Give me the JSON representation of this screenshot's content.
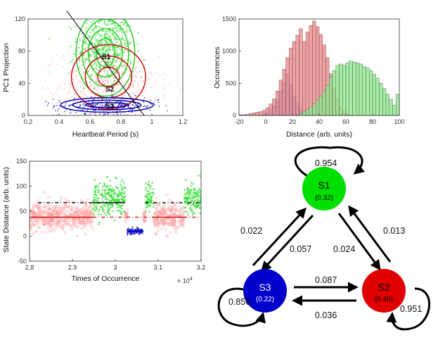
{
  "colors": {
    "s1": "#00e000",
    "s2": "#e00000",
    "s3": "#0000cc",
    "s1_fill": "#8fe98f",
    "s2_fill": "#ee8a8a",
    "s3_fill": "#8c8cee",
    "s1_scatter": "#33dd33",
    "s2_scatter": "#ff9999",
    "s3_scatter": "#2222cc",
    "ellipse_s2": "#cc0000",
    "ellipse_s1": "#22cc22",
    "ellipse_s3": "#0000aa",
    "axis": "#333333"
  },
  "chart_data": [
    {
      "type": "scatter",
      "xlabel": "Heartbeat Period (s)",
      "ylabel": "PC1 Projection",
      "xlim": [
        0.2,
        1.2
      ],
      "ylim": [
        0,
        120
      ],
      "xticks": [
        "0.2",
        "0.4",
        "0.6",
        "0.8",
        "1",
        "1.2"
      ],
      "yticks": [
        "0",
        "40",
        "80",
        "120"
      ],
      "annotations": [
        "S1",
        "S2",
        "S3"
      ],
      "series": [
        {
          "name": "S1",
          "center": [
            0.7,
            85
          ],
          "spread": [
            0.09,
            22
          ]
        },
        {
          "name": "S2",
          "center": [
            0.72,
            38
          ],
          "spread": [
            0.16,
            22
          ]
        },
        {
          "name": "S3",
          "center": [
            0.71,
            12
          ],
          "spread": [
            0.17,
            5
          ]
        }
      ],
      "ellipses": [
        {
          "state": "S1",
          "cx": 0.7,
          "cy": 78,
          "rx": [
            0.06,
            0.11,
            0.15,
            0.19
          ],
          "ry": [
            18,
            30,
            42,
            54
          ]
        },
        {
          "state": "S2",
          "cx": 0.72,
          "cy": 48,
          "rx": [
            0.07,
            0.15,
            0.24
          ],
          "ry": [
            12,
            26,
            40
          ]
        },
        {
          "state": "S3",
          "cx": 0.71,
          "cy": 13,
          "rx": [
            0.14,
            0.22,
            0.3
          ],
          "ry": [
            3,
            6,
            9
          ]
        }
      ],
      "diagonal_line": [
        [
          0.45,
          130
        ],
        [
          0.95,
          0
        ]
      ]
    },
    {
      "type": "bar",
      "xlabel": "Distance (arb. units)",
      "ylabel": "Occurrences",
      "xlim": [
        -20,
        100
      ],
      "ylim": [
        0,
        1500
      ],
      "xticks": [
        "-20",
        "0",
        "20",
        "40",
        "60",
        "80",
        "100"
      ],
      "yticks": [
        "0",
        "500",
        "1000",
        "1500"
      ],
      "bin_width": 2.5,
      "bin_start": -20,
      "series": [
        {
          "name": "S3",
          "values": [
            0,
            0,
            0,
            0,
            0,
            5,
            10,
            20,
            40,
            80,
            150,
            250,
            380,
            520,
            640,
            480,
            300,
            200,
            110,
            60,
            30,
            15,
            8,
            0,
            0,
            0,
            0,
            0,
            0,
            0,
            0,
            0,
            0,
            0,
            0,
            0,
            0,
            0,
            0,
            0,
            0,
            0,
            0,
            0,
            0,
            0,
            0,
            0
          ]
        },
        {
          "name": "S2",
          "values": [
            10,
            15,
            20,
            30,
            40,
            50,
            60,
            80,
            120,
            180,
            260,
            380,
            550,
            720,
            900,
            1050,
            1150,
            1250,
            1350,
            1150,
            1300,
            1400,
            1470,
            1380,
            1260,
            1100,
            900,
            650,
            430,
            260,
            140,
            70,
            30,
            10,
            0,
            0,
            0,
            0,
            0,
            0,
            0,
            0,
            0,
            0,
            0,
            0,
            0,
            0
          ]
        },
        {
          "name": "S1",
          "values": [
            0,
            0,
            0,
            0,
            0,
            0,
            0,
            0,
            0,
            0,
            0,
            0,
            0,
            0,
            0,
            0,
            0,
            10,
            30,
            60,
            90,
            130,
            180,
            240,
            300,
            380,
            470,
            600,
            700,
            780,
            800,
            780,
            820,
            850,
            830,
            820,
            800,
            760,
            740,
            700,
            640,
            580,
            500,
            420,
            330,
            250,
            160,
            330
          ]
        }
      ]
    },
    {
      "type": "scatter",
      "xlabel": "Times of Occurrence",
      "ylabel": "State Distance (arb. units)",
      "xlim": [
        2.8,
        3.2
      ],
      "ylim": [
        -50,
        150
      ],
      "xticks": [
        "2.8",
        "2.9",
        "3",
        "3.1",
        "3.2"
      ],
      "yticks": [
        "-50",
        "0",
        "50",
        "100",
        "150"
      ],
      "xscale_label": "× 10",
      "xscale_exponent": "4",
      "segments": [
        {
          "state": "S2",
          "start": 2.8,
          "end": 2.948,
          "level": 40,
          "spread": 14
        },
        {
          "state": "S1",
          "start": 2.948,
          "end": 3.023,
          "level": 75,
          "spread": 16
        },
        {
          "state": "S2",
          "start": 3.023,
          "end": 3.028,
          "level": 40,
          "spread": 8
        },
        {
          "state": "S3",
          "start": 3.028,
          "end": 3.065,
          "level": 10,
          "spread": 3
        },
        {
          "state": "S2",
          "start": 3.065,
          "end": 3.07,
          "level": 40,
          "spread": 8
        },
        {
          "state": "S1",
          "start": 3.07,
          "end": 3.09,
          "level": 80,
          "spread": 16
        },
        {
          "state": "S2",
          "start": 3.09,
          "end": 3.16,
          "level": 40,
          "spread": 14
        },
        {
          "state": "S1",
          "start": 3.16,
          "end": 3.2,
          "level": 75,
          "spread": 16
        }
      ],
      "reference_lines": [
        {
          "state": "S1",
          "y": 67,
          "style": "dashdot",
          "ranges": [
            [
              2.82,
              2.948
            ],
            [
              3.07,
              3.2
            ]
          ]
        },
        {
          "state": "S1",
          "y": 67,
          "style": "solid",
          "ranges": [
            [
              2.948,
              3.023
            ]
          ]
        },
        {
          "state": "S2",
          "y": 38,
          "style": "solid",
          "ranges": [
            [
              2.8,
              2.948
            ],
            [
              3.09,
              3.16
            ]
          ]
        },
        {
          "state": "S2",
          "y": 38,
          "style": "dashdot",
          "ranges": [
            [
              2.948,
              3.09
            ],
            [
              3.16,
              3.2
            ]
          ]
        },
        {
          "state": "S3",
          "y": 10,
          "style": "solid",
          "ranges": [
            [
              3.028,
              3.065
            ]
          ]
        }
      ]
    },
    {
      "type": "diagram",
      "nodes": [
        {
          "id": "S1",
          "label": "S1",
          "value": "(0.32)"
        },
        {
          "id": "S2",
          "label": "S2",
          "value": "(0.46)"
        },
        {
          "id": "S3",
          "label": "S3",
          "value": "(0.22)"
        }
      ],
      "self_loops": [
        {
          "node": "S1",
          "label": "0.954"
        },
        {
          "node": "S2",
          "label": "0.951"
        },
        {
          "node": "S3",
          "label": "0.856"
        }
      ],
      "transitions": [
        {
          "from": "S3",
          "to": "S1",
          "label": "0.022"
        },
        {
          "from": "S1",
          "to": "S3",
          "label": "0.057"
        },
        {
          "from": "S1",
          "to": "S2",
          "label": "0.024"
        },
        {
          "from": "S2",
          "to": "S1",
          "label": "0.013"
        },
        {
          "from": "S3",
          "to": "S2",
          "label": "0.087"
        },
        {
          "from": "S2",
          "to": "S3",
          "label": "0.036"
        }
      ]
    }
  ]
}
